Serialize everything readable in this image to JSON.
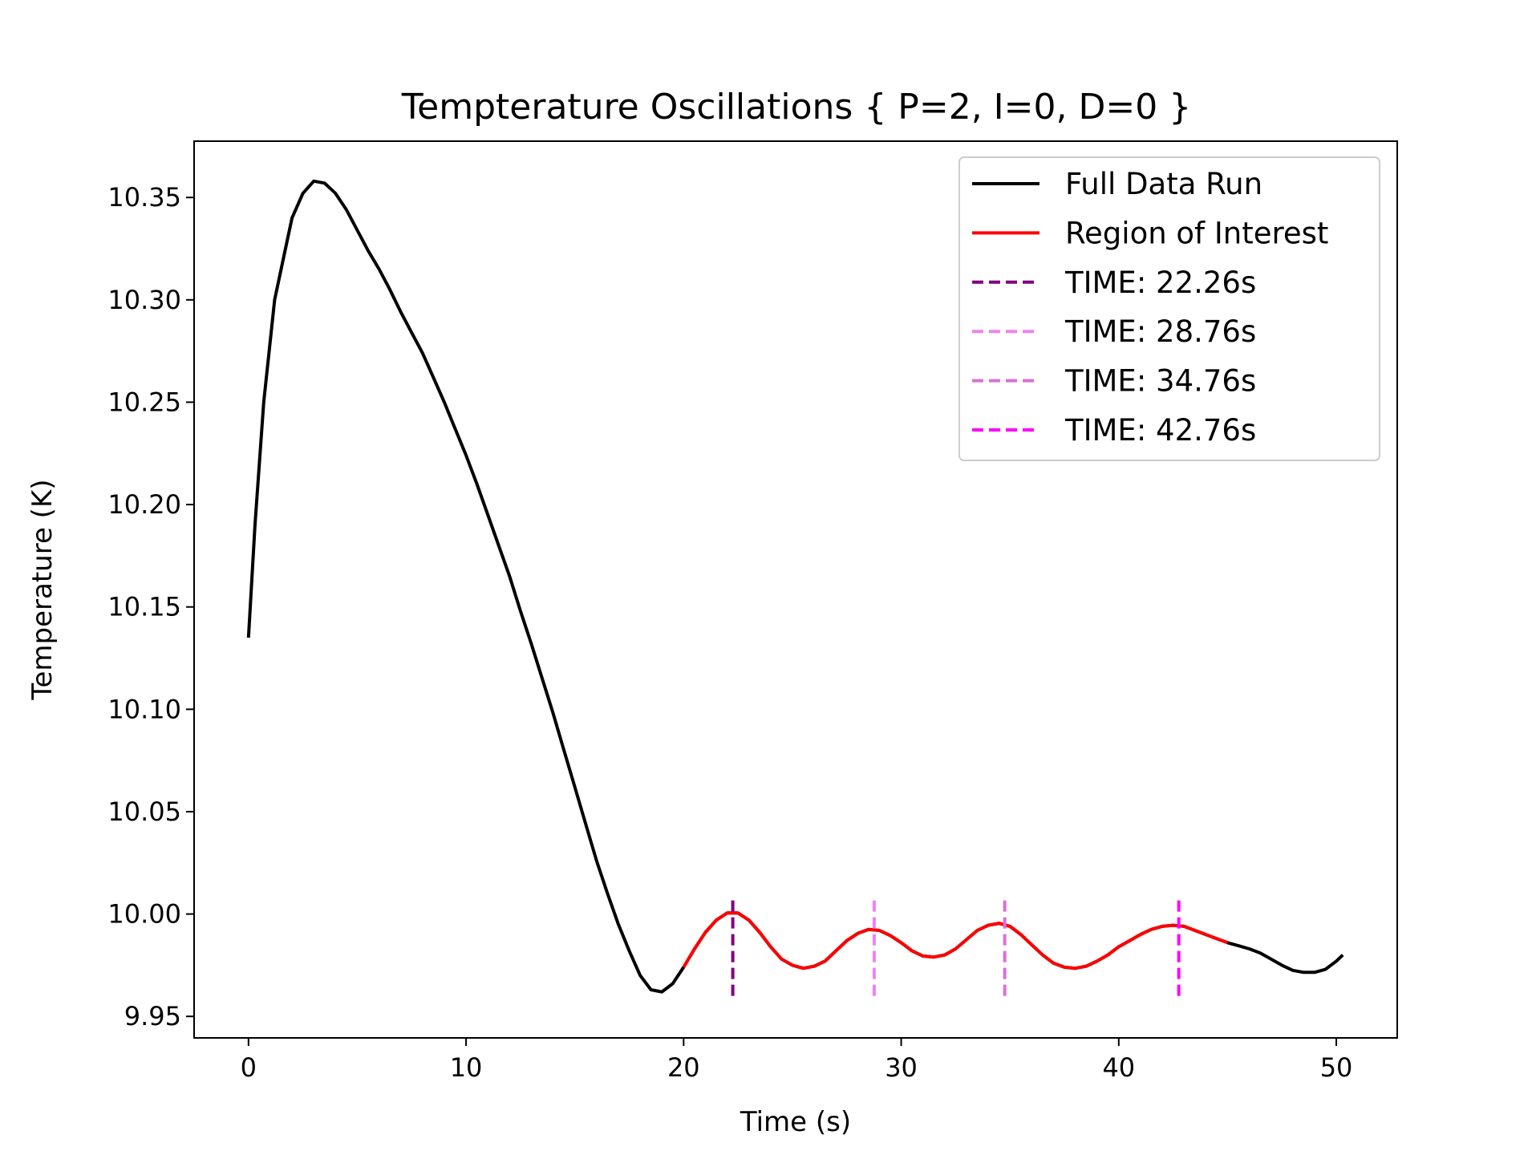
{
  "chart_data": {
    "type": "line",
    "title": "Tempterature Oscillations { P=2, I=0, D=0 }",
    "xlabel": "Time (s)",
    "ylabel": "Temperature (K)",
    "xlim": [
      -2.5,
      52.8
    ],
    "ylim": [
      9.9395,
      10.3775
    ],
    "x_ticks": [
      0,
      10,
      20,
      30,
      40,
      50
    ],
    "y_ticks": [
      9.95,
      10.0,
      10.05,
      10.1,
      10.15,
      10.2,
      10.25,
      10.3,
      10.35
    ],
    "grid": false,
    "legend_position": "top-right",
    "series": [
      {
        "name": "Full Data Run",
        "color": "#000000",
        "style": "solid",
        "points": [
          [
            0,
            10.135
          ],
          [
            0.3,
            10.19
          ],
          [
            0.7,
            10.25
          ],
          [
            1.2,
            10.3
          ],
          [
            1.6,
            10.32
          ],
          [
            2.0,
            10.34
          ],
          [
            2.5,
            10.352
          ],
          [
            3.0,
            10.358
          ],
          [
            3.5,
            10.357
          ],
          [
            4.0,
            10.352
          ],
          [
            4.5,
            10.344
          ],
          [
            5.0,
            10.334
          ],
          [
            5.5,
            10.324
          ],
          [
            6.0,
            10.315
          ],
          [
            6.5,
            10.305
          ],
          [
            7.0,
            10.294
          ],
          [
            7.5,
            10.284
          ],
          [
            8.0,
            10.274
          ],
          [
            8.5,
            10.262
          ],
          [
            9.0,
            10.25
          ],
          [
            9.5,
            10.237
          ],
          [
            10.0,
            10.224
          ],
          [
            10.5,
            10.21
          ],
          [
            11.0,
            10.195
          ],
          [
            11.5,
            10.18
          ],
          [
            12.0,
            10.165
          ],
          [
            12.5,
            10.148
          ],
          [
            13.0,
            10.132
          ],
          [
            13.5,
            10.115
          ],
          [
            14.0,
            10.098
          ],
          [
            14.5,
            10.08
          ],
          [
            15.0,
            10.062
          ],
          [
            15.5,
            10.044
          ],
          [
            16.0,
            10.026
          ],
          [
            16.5,
            10.01
          ],
          [
            17.0,
            9.995
          ],
          [
            17.5,
            9.982
          ],
          [
            18.0,
            9.97
          ],
          [
            18.5,
            9.963
          ],
          [
            19.0,
            9.962
          ],
          [
            19.5,
            9.966
          ],
          [
            20.0,
            9.974
          ],
          [
            20.5,
            9.983
          ],
          [
            21.0,
            9.991
          ],
          [
            21.5,
            9.997
          ],
          [
            22.0,
            10.0005
          ],
          [
            22.5,
            10.0005
          ],
          [
            23.0,
            9.997
          ],
          [
            23.5,
            9.991
          ],
          [
            24.0,
            9.984
          ],
          [
            24.5,
            9.978
          ],
          [
            25.0,
            9.975
          ],
          [
            25.5,
            9.9735
          ],
          [
            26.0,
            9.9745
          ],
          [
            26.5,
            9.977
          ],
          [
            27.0,
            9.982
          ],
          [
            27.5,
            9.987
          ],
          [
            28.0,
            9.9905
          ],
          [
            28.5,
            9.9925
          ],
          [
            29.0,
            9.992
          ],
          [
            29.5,
            9.9895
          ],
          [
            30.0,
            9.986
          ],
          [
            30.5,
            9.982
          ],
          [
            31.0,
            9.9795
          ],
          [
            31.5,
            9.979
          ],
          [
            32.0,
            9.98
          ],
          [
            32.5,
            9.983
          ],
          [
            33.0,
            9.9875
          ],
          [
            33.5,
            9.992
          ],
          [
            34.0,
            9.9945
          ],
          [
            34.5,
            9.9955
          ],
          [
            35.0,
            9.994
          ],
          [
            35.5,
            9.99
          ],
          [
            36.0,
            9.985
          ],
          [
            36.5,
            9.98
          ],
          [
            37.0,
            9.976
          ],
          [
            37.5,
            9.974
          ],
          [
            38.0,
            9.9735
          ],
          [
            38.5,
            9.9745
          ],
          [
            39.0,
            9.977
          ],
          [
            39.5,
            9.98
          ],
          [
            40.0,
            9.984
          ],
          [
            40.5,
            9.987
          ],
          [
            41.0,
            9.99
          ],
          [
            41.5,
            9.9925
          ],
          [
            42.0,
            9.994
          ],
          [
            42.5,
            9.9945
          ],
          [
            43.0,
            9.994
          ],
          [
            43.5,
            9.992
          ],
          [
            44.0,
            9.99
          ],
          [
            44.5,
            9.988
          ],
          [
            45.0,
            9.986
          ],
          [
            45.5,
            9.9845
          ],
          [
            46.0,
            9.983
          ],
          [
            46.5,
            9.981
          ],
          [
            47.0,
            9.978
          ],
          [
            47.5,
            9.975
          ],
          [
            48.0,
            9.9725
          ],
          [
            48.5,
            9.9715
          ],
          [
            49.0,
            9.9715
          ],
          [
            49.5,
            9.973
          ],
          [
            50.0,
            9.977
          ],
          [
            50.3,
            9.98
          ]
        ]
      },
      {
        "name": "Region of Interest",
        "color": "#ff0000",
        "style": "solid",
        "points": [
          [
            20.0,
            9.974
          ],
          [
            20.5,
            9.983
          ],
          [
            21.0,
            9.991
          ],
          [
            21.5,
            9.997
          ],
          [
            22.0,
            10.0005
          ],
          [
            22.5,
            10.0005
          ],
          [
            23.0,
            9.997
          ],
          [
            23.5,
            9.991
          ],
          [
            24.0,
            9.984
          ],
          [
            24.5,
            9.978
          ],
          [
            25.0,
            9.975
          ],
          [
            25.5,
            9.9735
          ],
          [
            26.0,
            9.9745
          ],
          [
            26.5,
            9.977
          ],
          [
            27.0,
            9.982
          ],
          [
            27.5,
            9.987
          ],
          [
            28.0,
            9.9905
          ],
          [
            28.5,
            9.9925
          ],
          [
            29.0,
            9.992
          ],
          [
            29.5,
            9.9895
          ],
          [
            30.0,
            9.986
          ],
          [
            30.5,
            9.982
          ],
          [
            31.0,
            9.9795
          ],
          [
            31.5,
            9.979
          ],
          [
            32.0,
            9.98
          ],
          [
            32.5,
            9.983
          ],
          [
            33.0,
            9.9875
          ],
          [
            33.5,
            9.992
          ],
          [
            34.0,
            9.9945
          ],
          [
            34.5,
            9.9955
          ],
          [
            35.0,
            9.994
          ],
          [
            35.5,
            9.99
          ],
          [
            36.0,
            9.985
          ],
          [
            36.5,
            9.98
          ],
          [
            37.0,
            9.976
          ],
          [
            37.5,
            9.974
          ],
          [
            38.0,
            9.9735
          ],
          [
            38.5,
            9.9745
          ],
          [
            39.0,
            9.977
          ],
          [
            39.5,
            9.98
          ],
          [
            40.0,
            9.984
          ],
          [
            40.5,
            9.987
          ],
          [
            41.0,
            9.99
          ],
          [
            41.5,
            9.9925
          ],
          [
            42.0,
            9.994
          ],
          [
            42.5,
            9.9945
          ],
          [
            43.0,
            9.994
          ],
          [
            43.5,
            9.992
          ],
          [
            44.0,
            9.99
          ],
          [
            44.5,
            9.988
          ],
          [
            45.0,
            9.986
          ]
        ]
      }
    ],
    "vlines": [
      {
        "name": "TIME: 22.26s",
        "x": 22.26,
        "y_range": [
          9.96,
          10.009
        ],
        "color": "#800080",
        "style": "dashed"
      },
      {
        "name": "TIME: 28.76s",
        "x": 28.76,
        "y_range": [
          9.96,
          10.009
        ],
        "color": "#ee82ee",
        "style": "dashed"
      },
      {
        "name": "TIME: 34.76s",
        "x": 34.76,
        "y_range": [
          9.96,
          10.009
        ],
        "color": "#da70d6",
        "style": "dashed"
      },
      {
        "name": "TIME: 42.76s",
        "x": 42.76,
        "y_range": [
          9.96,
          10.009
        ],
        "color": "#ff00ff",
        "style": "dashed"
      }
    ]
  }
}
